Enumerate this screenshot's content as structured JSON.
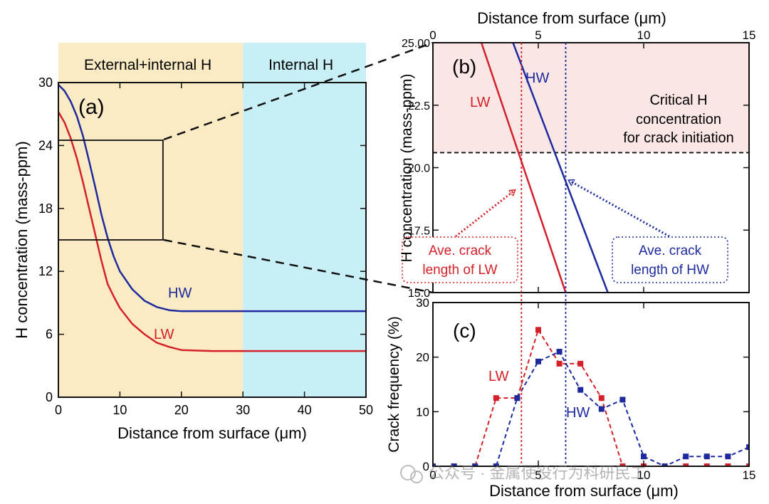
{
  "colors": {
    "lw": "#d42028",
    "hw": "#1e2a9e",
    "external_zone": "#faebc4",
    "internal_zone": "#c8eef6",
    "critical_zone": "#fbe6e6"
  },
  "chart_data": [
    {
      "id": "a",
      "type": "line",
      "panel_label": "(a)",
      "xlabel": "Distance from surface (μm)",
      "ylabel": "H concentration (mass-ppm)",
      "xlim": [
        0,
        50
      ],
      "ylim": [
        0,
        30
      ],
      "xticks": [
        0,
        10,
        20,
        30,
        40,
        50
      ],
      "yticks": [
        0,
        6,
        12,
        18,
        24,
        30
      ],
      "zones": [
        {
          "label": "External+internal H",
          "x_range": [
            0,
            30
          ]
        },
        {
          "label": "Internal H",
          "x_range": [
            30,
            50
          ]
        }
      ],
      "zoom_box": {
        "x_range": [
          0,
          17
        ],
        "y_range": [
          15,
          24.5
        ]
      },
      "series": [
        {
          "name": "HW",
          "x": [
            0,
            1,
            2,
            3,
            4,
            5,
            6,
            7,
            8,
            9,
            10,
            12,
            14,
            16,
            18,
            20,
            25,
            30,
            40,
            50
          ],
          "y": [
            29.8,
            29.2,
            28.2,
            26.8,
            24.9,
            22.5,
            20.0,
            17.4,
            15.2,
            13.4,
            12.0,
            10.3,
            9.2,
            8.6,
            8.3,
            8.2,
            8.2,
            8.2,
            8.2,
            8.2
          ]
        },
        {
          "name": "LW",
          "x": [
            0,
            1,
            2,
            3,
            4,
            5,
            6,
            7,
            8,
            9,
            10,
            12,
            14,
            16,
            18,
            20,
            25,
            30,
            40,
            50
          ],
          "y": [
            27.2,
            26.2,
            24.7,
            22.8,
            20.5,
            18.0,
            15.5,
            13.0,
            10.8,
            9.6,
            8.5,
            7.0,
            6.0,
            5.2,
            4.8,
            4.5,
            4.4,
            4.4,
            4.4,
            4.4
          ]
        }
      ]
    },
    {
      "id": "b",
      "type": "line",
      "panel_label": "(b)",
      "xlabel": "Distance from surface (μm)",
      "ylabel": "H concentration (mass-ppm)",
      "xlim": [
        0,
        15
      ],
      "ylim": [
        15,
        25
      ],
      "xticks": [
        0,
        5,
        10,
        15
      ],
      "yticks": [
        15.0,
        17.5,
        20.0,
        22.5,
        25.0
      ],
      "ytick_labels": [
        "15.0",
        "17.5",
        "20.0",
        "22.5",
        "25.00"
      ],
      "critical_h": 20.6,
      "critical_label": [
        "Critical H",
        "concentration",
        "for crack initiation"
      ],
      "avg_crack_length": {
        "LW": 4.2,
        "HW": 6.3
      },
      "annotations": [
        {
          "series": "LW",
          "lines": [
            "Ave. crack",
            "length of LW"
          ]
        },
        {
          "series": "HW",
          "lines": [
            "Ave. crack",
            "length of HW"
          ]
        }
      ],
      "series": [
        {
          "name": "LW",
          "x": [
            2.3,
            6.3
          ],
          "y": [
            25.0,
            15.0
          ]
        },
        {
          "name": "HW",
          "x": [
            3.8,
            8.3
          ],
          "y": [
            25.0,
            15.0
          ]
        }
      ]
    },
    {
      "id": "c",
      "type": "line",
      "panel_label": "(c)",
      "xlabel": "Distance from surface (μm)",
      "ylabel": "Crack frequency (%)",
      "xlim": [
        0,
        15
      ],
      "ylim": [
        0,
        30
      ],
      "xticks": [
        0,
        5,
        10,
        15
      ],
      "yticks": [
        0,
        10,
        20,
        30
      ],
      "series": [
        {
          "name": "LW",
          "x": [
            0,
            1,
            2,
            3,
            4,
            5,
            6,
            7,
            8,
            9,
            10,
            11,
            12,
            13,
            14,
            15
          ],
          "y": [
            0,
            0,
            0,
            12.5,
            12.5,
            25,
            18.8,
            18.8,
            12.5,
            0,
            0,
            0,
            0,
            0,
            0,
            0
          ]
        },
        {
          "name": "HW",
          "x": [
            0,
            1,
            2,
            3,
            4,
            5,
            6,
            7,
            8,
            9,
            10,
            11,
            12,
            13,
            14,
            15
          ],
          "y": [
            0,
            0,
            0,
            0,
            12.5,
            19.2,
            21,
            14,
            10.5,
            12.2,
            1.8,
            0,
            1.8,
            1.8,
            1.8,
            3.5
          ]
        }
      ]
    }
  ],
  "watermark": "公众号 · 金属使役行为科研民工"
}
